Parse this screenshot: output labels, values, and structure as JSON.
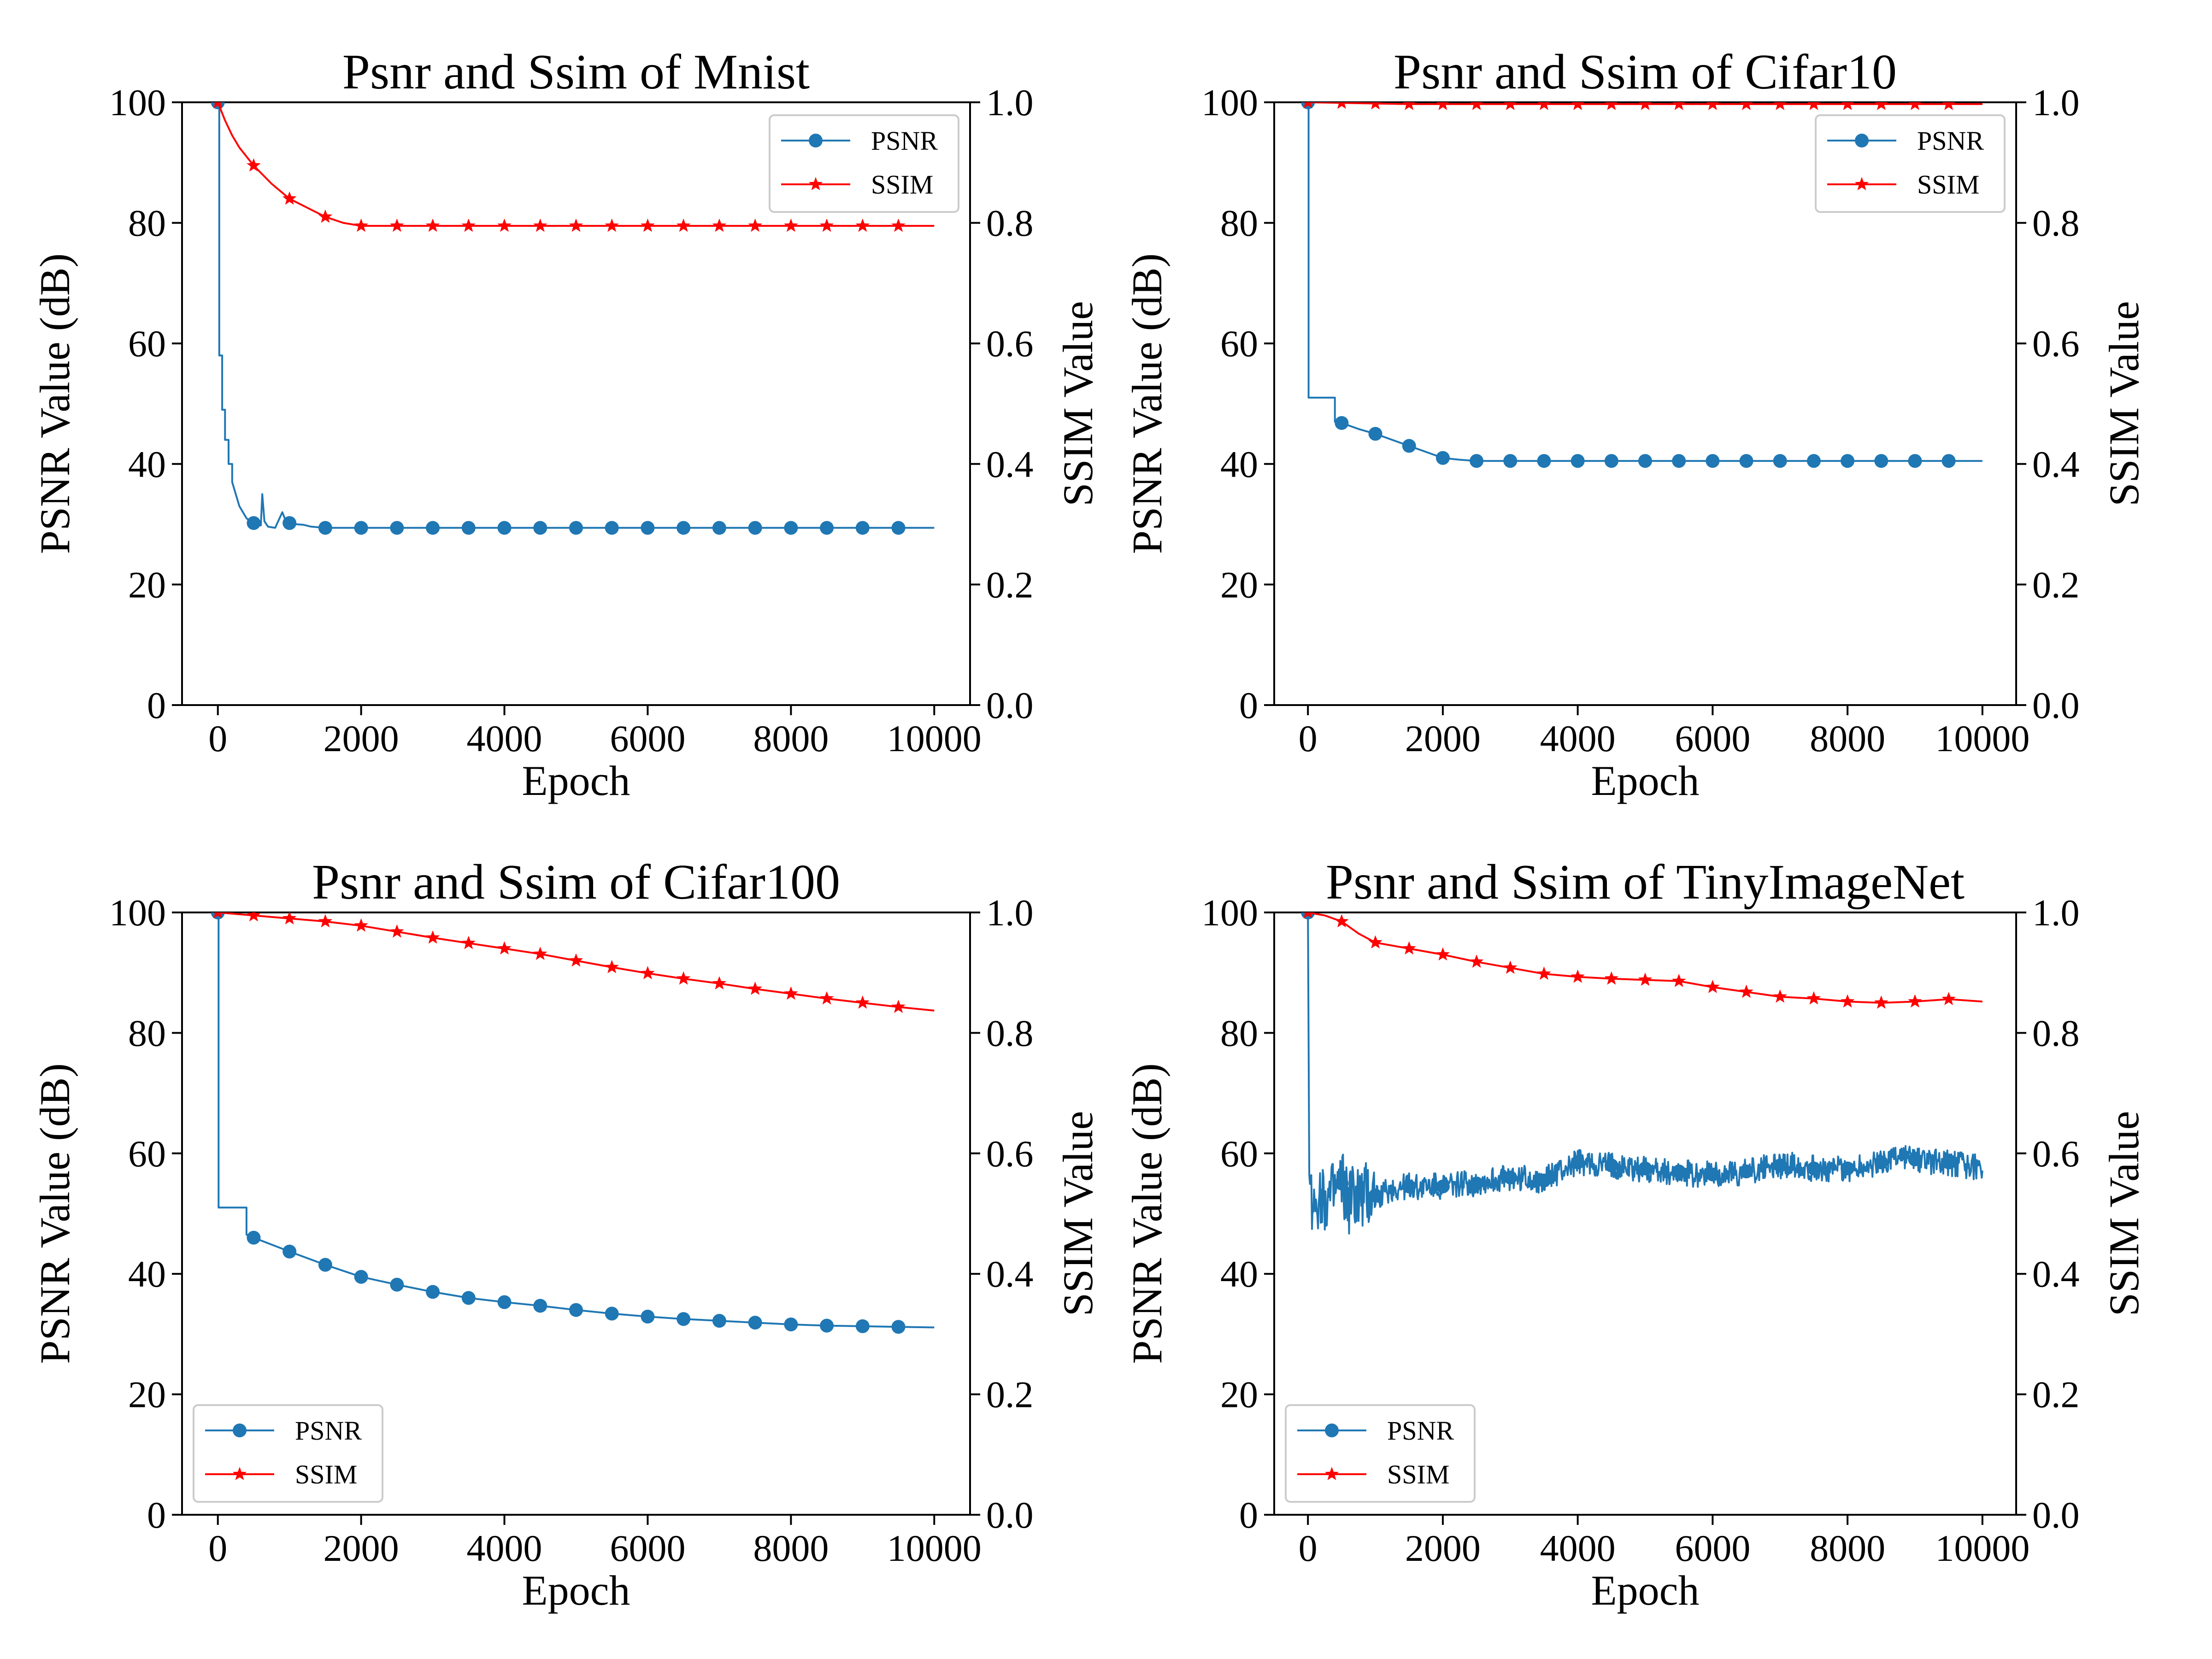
{
  "chart_data": [
    {
      "type": "line",
      "title": "Psnr and Ssim of Mnist",
      "xlabel": "Epoch",
      "ylabel": "PSNR Value (dB)",
      "ylabel_right": "SSIM Value",
      "xlim": [
        -500,
        10500
      ],
      "ylim": [
        0,
        100
      ],
      "ylim_right": [
        0,
        1.0
      ],
      "xticks": [
        "0",
        "2000",
        "4000",
        "6000",
        "8000",
        "10000"
      ],
      "yticks": [
        "0",
        "20",
        "40",
        "60",
        "80",
        "100"
      ],
      "yticks_right": [
        "0.0",
        "0.2",
        "0.4",
        "0.6",
        "0.8",
        "1.0"
      ],
      "legend_position": "upper-right",
      "grid": false,
      "series": [
        {
          "name": "PSNR",
          "axis": "left",
          "color": "#1f77b4",
          "marker": "circle",
          "x": [
            0,
            20,
            20,
            60,
            60,
            100,
            100,
            150,
            150,
            200,
            200,
            250,
            300,
            350,
            400,
            450,
            500,
            550,
            600,
            620,
            650,
            700,
            750,
            800,
            900,
            950,
            1000,
            1100,
            1200,
            1300,
            1400,
            1500,
            2000,
            2500,
            3000,
            3500,
            4000,
            4500,
            5000,
            5500,
            6000,
            6500,
            7000,
            7500,
            8000,
            8500,
            9000,
            9500,
            10000
          ],
          "values": [
            100,
            100,
            58,
            58,
            49,
            49,
            44,
            44,
            40,
            40,
            37,
            35,
            33,
            32,
            31,
            30.5,
            30.2,
            30,
            29.8,
            35,
            30.5,
            29.6,
            29.5,
            29.4,
            32,
            30.5,
            30.2,
            30,
            29.9,
            29.6,
            29.5,
            29.4,
            29.4,
            29.4,
            29.4,
            29.4,
            29.4,
            29.4,
            29.4,
            29.4,
            29.4,
            29.4,
            29.4,
            29.4,
            29.4,
            29.4,
            29.4,
            29.4,
            29.4
          ]
        },
        {
          "name": "SSIM",
          "axis": "right",
          "color": "#ff0000",
          "marker": "star",
          "x": [
            0,
            100,
            200,
            300,
            400,
            500,
            750,
            1000,
            1250,
            1500,
            1750,
            2000,
            2500,
            3000,
            3500,
            4000,
            4500,
            5000,
            5500,
            6000,
            6500,
            7000,
            7500,
            8000,
            8500,
            9000,
            9500,
            10000
          ],
          "values": [
            1.0,
            0.97,
            0.945,
            0.925,
            0.91,
            0.895,
            0.865,
            0.84,
            0.825,
            0.81,
            0.8,
            0.795,
            0.795,
            0.795,
            0.795,
            0.795,
            0.795,
            0.795,
            0.795,
            0.795,
            0.795,
            0.795,
            0.795,
            0.795,
            0.795,
            0.795,
            0.795,
            0.795
          ]
        }
      ]
    },
    {
      "type": "line",
      "title": "Psnr and Ssim of Cifar10",
      "xlabel": "Epoch",
      "ylabel": "PSNR Value (dB)",
      "ylabel_right": "SSIM Value",
      "xlim": [
        -500,
        10500
      ],
      "ylim": [
        0,
        100
      ],
      "ylim_right": [
        0,
        1.0
      ],
      "xticks": [
        "0",
        "2000",
        "4000",
        "6000",
        "8000",
        "10000"
      ],
      "yticks": [
        "0",
        "20",
        "40",
        "60",
        "80",
        "100"
      ],
      "yticks_right": [
        "0.0",
        "0.2",
        "0.4",
        "0.6",
        "0.8",
        "1.0"
      ],
      "legend_position": "upper-right",
      "grid": false,
      "series": [
        {
          "name": "PSNR",
          "axis": "left",
          "color": "#1f77b4",
          "marker": "circle",
          "x": [
            0,
            10,
            10,
            400,
            400,
            500,
            750,
            1000,
            1250,
            1500,
            1750,
            2000,
            2250,
            2500,
            3000,
            3500,
            4000,
            4500,
            5000,
            5500,
            6000,
            6500,
            7000,
            7500,
            8000,
            8500,
            9000,
            9500,
            10000
          ],
          "values": [
            100,
            100,
            51,
            51,
            47,
            46.8,
            45.8,
            45,
            44,
            43,
            42,
            41,
            40.7,
            40.5,
            40.5,
            40.5,
            40.5,
            40.5,
            40.5,
            40.5,
            40.5,
            40.5,
            40.5,
            40.5,
            40.5,
            40.5,
            40.5,
            40.5,
            40.5
          ]
        },
        {
          "name": "SSIM",
          "axis": "right",
          "color": "#ff0000",
          "marker": "star",
          "x": [
            0,
            500,
            1000,
            1500,
            2000,
            2500,
            3000,
            3500,
            4000,
            4500,
            5000,
            5500,
            6000,
            6500,
            7000,
            7500,
            8000,
            8500,
            9000,
            9500,
            10000
          ],
          "values": [
            1.0,
            0.999,
            0.998,
            0.997,
            0.997,
            0.997,
            0.997,
            0.997,
            0.997,
            0.997,
            0.997,
            0.997,
            0.997,
            0.997,
            0.997,
            0.997,
            0.997,
            0.997,
            0.997,
            0.997,
            0.997
          ]
        }
      ]
    },
    {
      "type": "line",
      "title": "Psnr and Ssim of Cifar100",
      "xlabel": "Epoch",
      "ylabel": "PSNR Value (dB)",
      "ylabel_right": "SSIM Value",
      "xlim": [
        -500,
        10500
      ],
      "ylim": [
        0,
        100
      ],
      "ylim_right": [
        0,
        1.0
      ],
      "xticks": [
        "0",
        "2000",
        "4000",
        "6000",
        "8000",
        "10000"
      ],
      "yticks": [
        "0",
        "20",
        "40",
        "60",
        "80",
        "100"
      ],
      "yticks_right": [
        "0.0",
        "0.2",
        "0.4",
        "0.6",
        "0.8",
        "1.0"
      ],
      "legend_position": "lower-left",
      "grid": false,
      "series": [
        {
          "name": "PSNR",
          "axis": "left",
          "color": "#1f77b4",
          "marker": "circle",
          "x": [
            0,
            10,
            10,
            400,
            400,
            500,
            1000,
            1500,
            2000,
            2500,
            3000,
            3500,
            4000,
            4500,
            5000,
            5500,
            6000,
            6500,
            7000,
            7500,
            8000,
            8500,
            9000,
            9500,
            10000
          ],
          "values": [
            100,
            100,
            51,
            51,
            46.5,
            46,
            43.7,
            41.5,
            39.5,
            38.2,
            37,
            36,
            35.3,
            34.7,
            34,
            33.4,
            32.9,
            32.5,
            32.2,
            31.9,
            31.6,
            31.4,
            31.3,
            31.2,
            31.1
          ]
        },
        {
          "name": "SSIM",
          "axis": "right",
          "color": "#ff0000",
          "marker": "star",
          "x": [
            0,
            500,
            1000,
            1500,
            2000,
            2500,
            3000,
            3500,
            4000,
            4500,
            5000,
            5500,
            6000,
            6500,
            7000,
            7500,
            8000,
            8500,
            9000,
            9500,
            10000
          ],
          "values": [
            1.0,
            0.995,
            0.99,
            0.985,
            0.978,
            0.968,
            0.958,
            0.949,
            0.94,
            0.931,
            0.92,
            0.909,
            0.899,
            0.89,
            0.882,
            0.873,
            0.865,
            0.857,
            0.85,
            0.843,
            0.837
          ]
        }
      ]
    },
    {
      "type": "line",
      "title": "Psnr and Ssim of TinyImageNet",
      "xlabel": "Epoch",
      "ylabel": "PSNR Value (dB)",
      "ylabel_right": "SSIM Value",
      "xlim": [
        -500,
        10500
      ],
      "ylim": [
        0,
        100
      ],
      "ylim_right": [
        0,
        1.0
      ],
      "xticks": [
        "0",
        "2000",
        "4000",
        "6000",
        "8000",
        "10000"
      ],
      "yticks": [
        "0",
        "20",
        "40",
        "60",
        "80",
        "100"
      ],
      "yticks_right": [
        "0.0",
        "0.2",
        "0.4",
        "0.6",
        "0.8",
        "1.0"
      ],
      "legend_position": "lower-left",
      "grid": false,
      "series": [
        {
          "name": "PSNR",
          "axis": "left",
          "color": "#1f77b4",
          "marker": "circle",
          "noisy": true,
          "x": [
            0,
            20,
            50,
            100,
            200,
            300,
            400,
            500,
            600,
            700,
            800,
            900,
            1000,
            1250,
            1500,
            1750,
            2000,
            2250,
            2500,
            2750,
            3000,
            3250,
            3500,
            3750,
            4000,
            4250,
            4500,
            4750,
            5000,
            5250,
            5500,
            5750,
            6000,
            6250,
            6500,
            6750,
            7000,
            7250,
            7500,
            7750,
            8000,
            8250,
            8500,
            8750,
            9000,
            9250,
            9500,
            9750,
            10000
          ],
          "values": [
            100,
            56,
            52,
            53,
            54,
            52,
            53,
            55,
            52,
            53,
            52,
            53,
            53,
            54,
            54.5,
            54.5,
            54.5,
            55,
            55,
            55.5,
            56,
            56,
            55.5,
            57,
            58.5,
            58,
            58,
            57.5,
            57.5,
            57,
            57,
            56.5,
            56.5,
            56.5,
            57,
            57.5,
            58,
            58,
            57.5,
            57.5,
            57.5,
            58,
            58.5,
            59.5,
            59,
            58.5,
            58.5,
            58,
            57.5
          ]
        },
        {
          "name": "SSIM",
          "axis": "right",
          "color": "#ff0000",
          "marker": "star",
          "x": [
            0,
            250,
            500,
            750,
            1000,
            1500,
            2000,
            2500,
            3000,
            3500,
            4000,
            4500,
            5000,
            5500,
            6000,
            6500,
            7000,
            7500,
            8000,
            8500,
            9000,
            9500,
            10000
          ],
          "values": [
            1.0,
            0.995,
            0.985,
            0.965,
            0.95,
            0.94,
            0.93,
            0.918,
            0.908,
            0.898,
            0.893,
            0.89,
            0.888,
            0.886,
            0.876,
            0.868,
            0.86,
            0.857,
            0.852,
            0.85,
            0.852,
            0.856,
            0.852
          ]
        }
      ]
    }
  ]
}
